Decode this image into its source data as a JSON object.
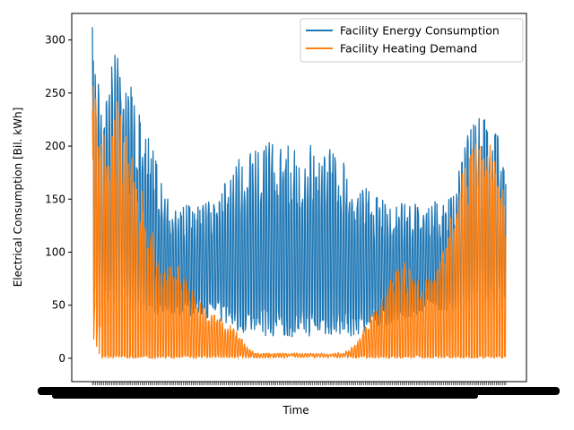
{
  "chart_data": {
    "type": "line",
    "xlabel": "Time",
    "ylabel": "Electrical Consumption [Bil. kWh]",
    "ylim": [
      -22,
      325
    ],
    "yticks": [
      0,
      50,
      100,
      150,
      200,
      250,
      300
    ],
    "x_domain": [
      -0.05,
      1.05
    ],
    "grid": false,
    "legend_position": "upper right",
    "x_tick_labels": "dense, overlapping (illegible)",
    "series": [
      {
        "name": "Facility Energy Consumption",
        "color": "#1f77b4",
        "x": [
          0.0,
          0.02,
          0.04,
          0.06,
          0.08,
          0.1,
          0.12,
          0.14,
          0.16,
          0.18,
          0.2,
          0.22,
          0.24,
          0.26,
          0.28,
          0.3,
          0.32,
          0.34,
          0.36,
          0.38,
          0.4,
          0.42,
          0.44,
          0.46,
          0.48,
          0.5,
          0.52,
          0.54,
          0.56,
          0.58,
          0.6,
          0.62,
          0.64,
          0.66,
          0.68,
          0.7,
          0.72,
          0.74,
          0.76,
          0.78,
          0.8,
          0.82,
          0.84,
          0.86,
          0.88,
          0.9,
          0.92,
          0.94,
          0.96,
          0.98,
          1.0
        ],
        "max": [
          312,
          265,
          270,
          298,
          284,
          250,
          220,
          205,
          185,
          160,
          145,
          145,
          145,
          145,
          150,
          165,
          175,
          185,
          190,
          195,
          200,
          205,
          205,
          200,
          200,
          195,
          200,
          205,
          200,
          200,
          190,
          180,
          175,
          165,
          155,
          150,
          145,
          150,
          150,
          145,
          150,
          150,
          145,
          150,
          165,
          200,
          230,
          225,
          225,
          210,
          205
        ],
        "min": [
          45,
          45,
          45,
          45,
          50,
          45,
          45,
          45,
          40,
          40,
          40,
          40,
          40,
          40,
          38,
          36,
          32,
          28,
          25,
          22,
          20,
          20,
          20,
          20,
          20,
          20,
          20,
          20,
          20,
          20,
          20,
          20,
          22,
          25,
          28,
          30,
          32,
          35,
          38,
          40,
          42,
          45,
          45,
          45,
          45,
          45,
          45,
          45,
          45,
          45,
          45
        ]
      },
      {
        "name": "Facility Heating Demand",
        "color": "#ff7f0e",
        "x": [
          0.0,
          0.02,
          0.04,
          0.06,
          0.08,
          0.1,
          0.12,
          0.14,
          0.16,
          0.18,
          0.2,
          0.22,
          0.24,
          0.26,
          0.28,
          0.3,
          0.32,
          0.34,
          0.36,
          0.38,
          0.4,
          0.42,
          0.44,
          0.46,
          0.48,
          0.5,
          0.52,
          0.54,
          0.56,
          0.58,
          0.6,
          0.62,
          0.64,
          0.66,
          0.68,
          0.7,
          0.72,
          0.74,
          0.76,
          0.78,
          0.8,
          0.82,
          0.84,
          0.86,
          0.88,
          0.9,
          0.92,
          0.94,
          0.96,
          0.98,
          1.0
        ],
        "max": [
          262,
          220,
          200,
          245,
          225,
          180,
          160,
          130,
          100,
          90,
          90,
          90,
          65,
          55,
          45,
          40,
          35,
          30,
          20,
          8,
          5,
          5,
          5,
          5,
          5,
          5,
          5,
          5,
          5,
          5,
          5,
          8,
          15,
          30,
          45,
          60,
          80,
          90,
          90,
          80,
          70,
          80,
          90,
          120,
          160,
          190,
          200,
          210,
          205,
          180,
          150
        ],
        "min": [
          20,
          0,
          0,
          0,
          0,
          0,
          0,
          0,
          0,
          0,
          0,
          0,
          0,
          0,
          0,
          0,
          0,
          0,
          0,
          0,
          0,
          0,
          0,
          0,
          0,
          0,
          0,
          0,
          0,
          0,
          0,
          0,
          0,
          0,
          0,
          0,
          0,
          0,
          0,
          0,
          0,
          0,
          0,
          0,
          0,
          0,
          0,
          0,
          0,
          0,
          0
        ]
      }
    ]
  }
}
